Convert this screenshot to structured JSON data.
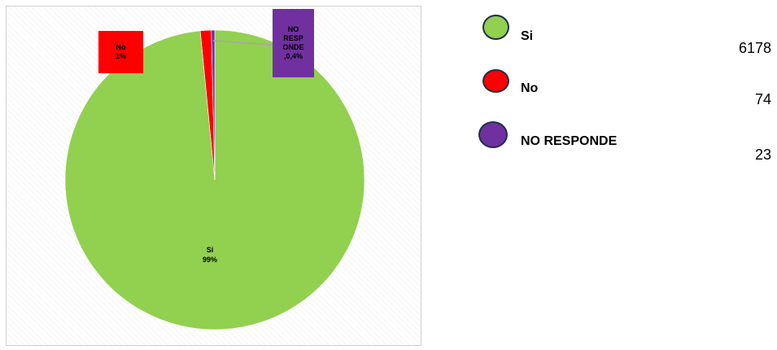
{
  "chart_data": {
    "type": "pie",
    "categories": [
      "Si",
      "No",
      "NO RESPONDE"
    ],
    "values": [
      6178,
      74,
      23
    ],
    "colors": [
      "#92d050",
      "#ff0000",
      "#7030a0"
    ],
    "data_labels": [
      {
        "name": "Si",
        "pct": "99%"
      },
      {
        "name": "No",
        "pct": "1%"
      },
      {
        "name_lines": [
          "NO",
          "RESP",
          "ONDE"
        ],
        "pct": ",0,4%"
      }
    ],
    "legend": {
      "placement": "right",
      "entries": [
        {
          "label": "Si",
          "value": "6178"
        },
        {
          "label": "No",
          "value": "74"
        },
        {
          "label": "NO RESPONDE",
          "value": "23"
        }
      ]
    }
  }
}
